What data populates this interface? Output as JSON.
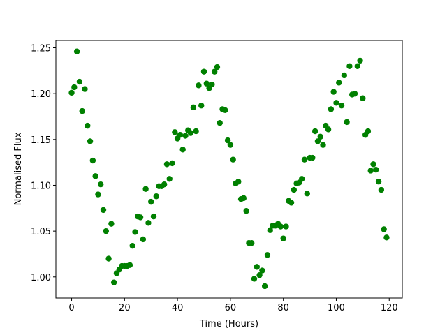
{
  "chart_data": {
    "type": "scatter",
    "x_label": "Time (Hours)",
    "y_label": "Normalised Flux",
    "color": "#008000",
    "x": [
      0,
      1,
      2,
      3,
      4,
      5,
      6,
      7,
      8,
      9,
      10,
      11,
      12,
      13,
      14,
      15,
      16,
      17,
      18,
      19,
      20,
      21,
      22,
      23,
      24,
      25,
      26,
      27,
      28,
      29,
      30,
      31,
      32,
      33,
      34,
      35,
      36,
      37,
      38,
      39,
      40,
      41,
      42,
      43,
      44,
      45,
      46,
      47,
      48,
      49,
      50,
      51,
      52,
      53,
      54,
      55,
      56,
      57,
      58,
      59,
      60,
      61,
      62,
      63,
      64,
      65,
      66,
      67,
      68,
      69,
      70,
      71,
      72,
      73,
      74,
      75,
      76,
      77,
      78,
      79,
      80,
      81,
      82,
      83,
      84,
      85,
      86,
      87,
      88,
      89,
      90,
      91,
      92,
      93,
      94,
      95,
      96,
      97,
      98,
      99,
      100,
      101,
      102,
      103,
      104,
      105,
      106,
      107,
      108,
      109,
      110,
      111,
      112,
      113,
      114,
      115,
      116,
      117,
      118,
      119
    ],
    "values": [
      1.201,
      1.207,
      1.246,
      1.213,
      1.181,
      1.205,
      1.165,
      1.148,
      1.127,
      1.11,
      1.09,
      1.101,
      1.073,
      1.05,
      1.02,
      1.058,
      0.994,
      1.004,
      1.008,
      1.012,
      1.012,
      1.012,
      1.013,
      1.034,
      1.049,
      1.066,
      1.065,
      1.041,
      1.096,
      1.059,
      1.082,
      1.066,
      1.088,
      1.099,
      1.099,
      1.101,
      1.123,
      1.107,
      1.124,
      1.158,
      1.151,
      1.155,
      1.139,
      1.154,
      1.16,
      1.157,
      1.185,
      1.159,
      1.209,
      1.187,
      1.224,
      1.211,
      1.206,
      1.21,
      1.224,
      1.229,
      1.168,
      1.183,
      1.182,
      1.149,
      1.144,
      1.128,
      1.102,
      1.104,
      1.085,
      1.086,
      1.072,
      1.037,
      1.037,
      0.998,
      1.011,
      1.002,
      1.007,
      0.99,
      1.024,
      1.051,
      1.056,
      1.056,
      1.058,
      1.055,
      1.042,
      1.055,
      1.083,
      1.081,
      1.095,
      1.102,
      1.103,
      1.107,
      1.128,
      1.091,
      1.13,
      1.13,
      1.159,
      1.148,
      1.153,
      1.144,
      1.165,
      1.161,
      1.183,
      1.202,
      1.19,
      1.212,
      1.187,
      1.22,
      1.169,
      1.23,
      1.199,
      1.2,
      1.23,
      1.236,
      1.195,
      1.155,
      1.159,
      1.116,
      1.123,
      1.117,
      1.104,
      1.095,
      1.052,
      1.043
    ],
    "xlim": [
      -5.95,
      124.95
    ],
    "ylim": [
      0.977,
      1.258
    ],
    "xticks": [
      0,
      20,
      40,
      60,
      80,
      100,
      120
    ],
    "yticks": [
      {
        "value": 1.0,
        "label": "1.00"
      },
      {
        "value": 1.05,
        "label": "1.05"
      },
      {
        "value": 1.1,
        "label": "1.10"
      },
      {
        "value": 1.15,
        "label": "1.15"
      },
      {
        "value": 1.2,
        "label": "1.20"
      },
      {
        "value": 1.25,
        "label": "1.25"
      }
    ]
  }
}
